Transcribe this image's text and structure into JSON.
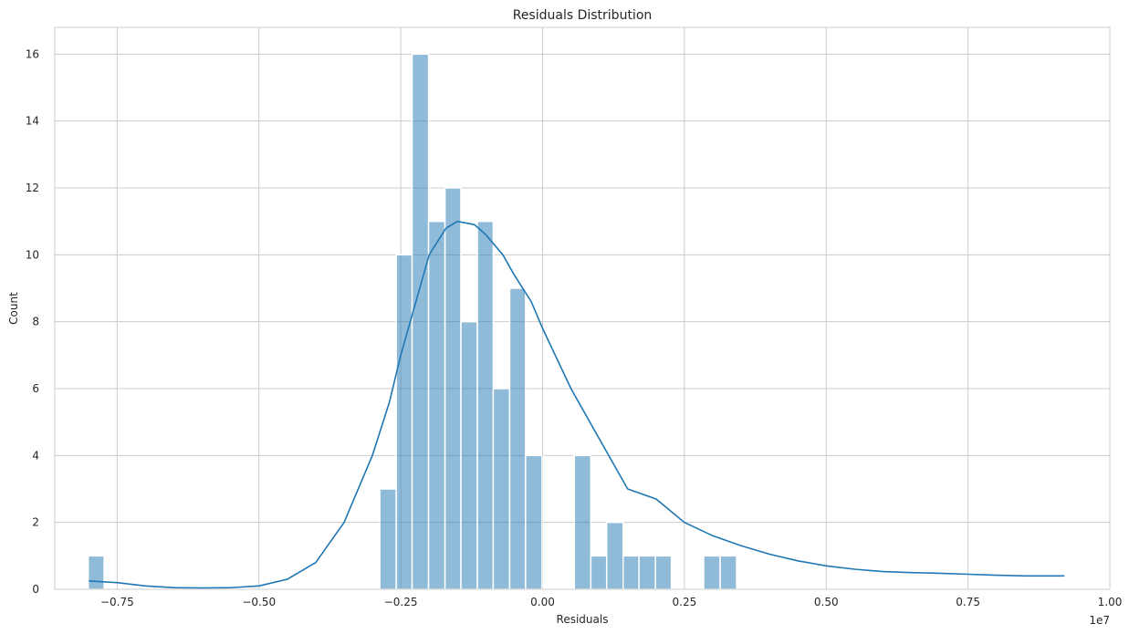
{
  "chart_data": {
    "type": "histogram",
    "title": "Residuals Distribution",
    "xlabel": "Residuals",
    "ylabel": "Count",
    "x_offset_label": "1e7",
    "xlim": [
      -0.86,
      1.0
    ],
    "ylim": [
      0,
      16.8
    ],
    "x_ticks": [
      -0.75,
      -0.5,
      -0.25,
      0.0,
      0.25,
      0.5,
      0.75,
      1.0
    ],
    "x_tick_labels": [
      "−0.75",
      "−0.50",
      "−0.25",
      "0.00",
      "0.25",
      "0.50",
      "0.75",
      "1.00"
    ],
    "y_ticks": [
      0,
      2,
      4,
      6,
      8,
      10,
      12,
      14,
      16
    ],
    "y_tick_labels": [
      "0",
      "2",
      "4",
      "6",
      "8",
      "10",
      "12",
      "14",
      "16"
    ],
    "grid": true,
    "bar_color": "#1f77b4",
    "bins": [
      {
        "x0": -0.801,
        "x1": -0.773,
        "count": 1
      },
      {
        "x0": -0.287,
        "x1": -0.258,
        "count": 3
      },
      {
        "x0": -0.258,
        "x1": -0.23,
        "count": 10
      },
      {
        "x0": -0.23,
        "x1": -0.201,
        "count": 16
      },
      {
        "x0": -0.201,
        "x1": -0.172,
        "count": 11
      },
      {
        "x0": -0.172,
        "x1": -0.144,
        "count": 12
      },
      {
        "x0": -0.144,
        "x1": -0.115,
        "count": 8
      },
      {
        "x0": -0.115,
        "x1": -0.087,
        "count": 11
      },
      {
        "x0": -0.087,
        "x1": -0.058,
        "count": 6
      },
      {
        "x0": -0.058,
        "x1": -0.03,
        "count": 9
      },
      {
        "x0": -0.03,
        "x1": -0.001,
        "count": 4
      },
      {
        "x0": 0.056,
        "x1": 0.085,
        "count": 4
      },
      {
        "x0": 0.085,
        "x1": 0.113,
        "count": 1
      },
      {
        "x0": 0.113,
        "x1": 0.142,
        "count": 2
      },
      {
        "x0": 0.142,
        "x1": 0.17,
        "count": 1
      },
      {
        "x0": 0.17,
        "x1": 0.199,
        "count": 1
      },
      {
        "x0": 0.199,
        "x1": 0.227,
        "count": 1
      },
      {
        "x0": 0.284,
        "x1": 0.313,
        "count": 1
      },
      {
        "x0": 0.313,
        "x1": 0.342,
        "count": 1
      }
    ],
    "kde": {
      "x": [
        -0.8,
        -0.75,
        -0.7,
        -0.65,
        -0.6,
        -0.55,
        -0.5,
        -0.45,
        -0.4,
        -0.35,
        -0.3,
        -0.27,
        -0.25,
        -0.22,
        -0.2,
        -0.17,
        -0.15,
        -0.12,
        -0.1,
        -0.07,
        -0.05,
        -0.02,
        0.0,
        0.05,
        0.1,
        0.15,
        0.2,
        0.25,
        0.3,
        0.35,
        0.4,
        0.45,
        0.5,
        0.55,
        0.6,
        0.65,
        0.7,
        0.75,
        0.8,
        0.85,
        0.9,
        0.92
      ],
      "y": [
        0.25,
        0.2,
        0.1,
        0.05,
        0.04,
        0.05,
        0.1,
        0.3,
        0.8,
        2.0,
        4.0,
        5.6,
        7.0,
        8.8,
        10.0,
        10.8,
        11.0,
        10.9,
        10.6,
        10.0,
        9.4,
        8.6,
        7.8,
        6.0,
        4.5,
        3.0,
        2.7,
        2.0,
        1.6,
        1.3,
        1.05,
        0.85,
        0.7,
        0.6,
        0.53,
        0.5,
        0.48,
        0.45,
        0.42,
        0.4,
        0.4,
        0.4
      ]
    }
  }
}
